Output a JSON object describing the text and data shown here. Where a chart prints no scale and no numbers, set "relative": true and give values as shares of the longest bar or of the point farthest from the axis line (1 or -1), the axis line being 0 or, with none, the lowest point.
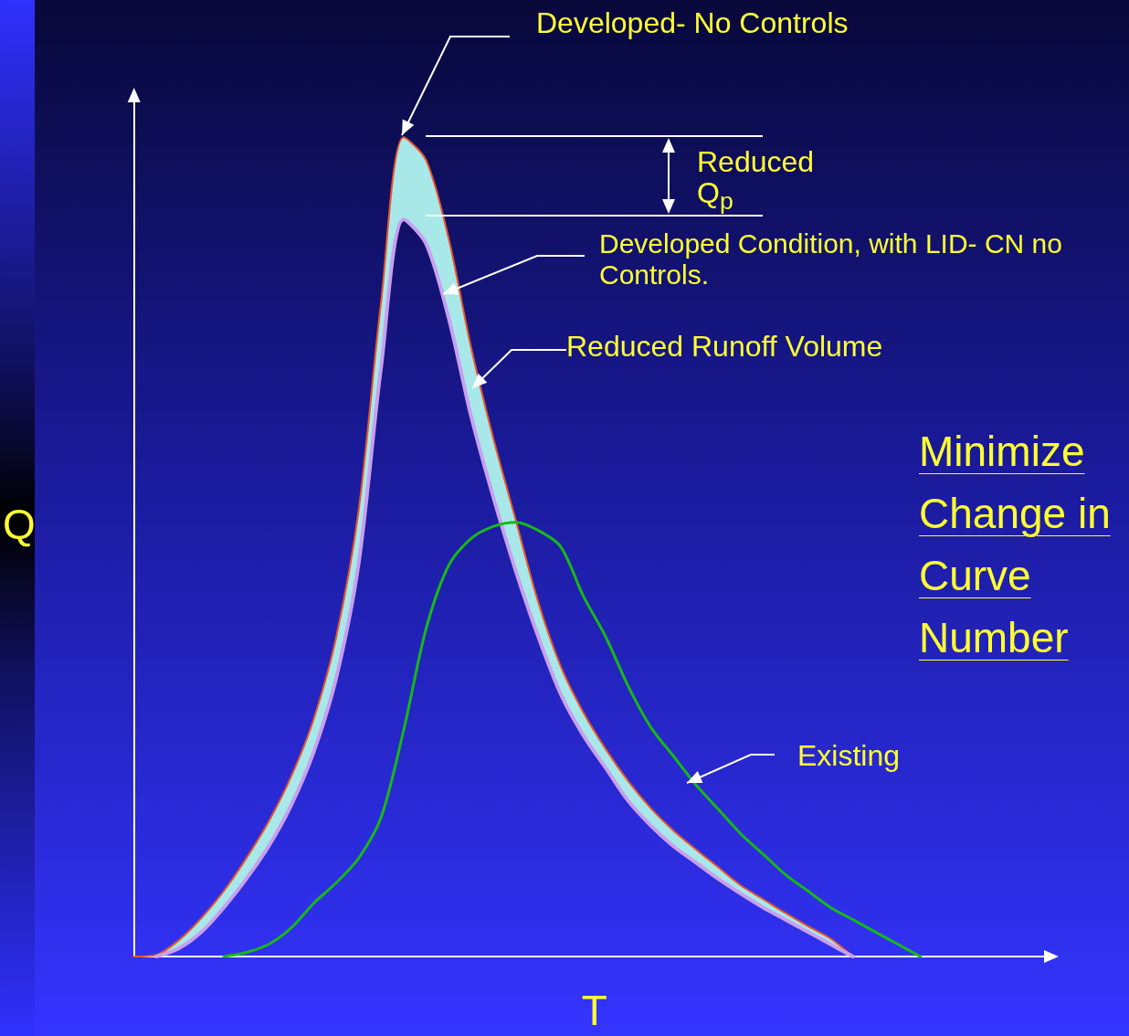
{
  "chart_data": {
    "type": "line",
    "relative": true,
    "xlabel": "T",
    "ylabel": "Q",
    "grid": false,
    "marker": "none",
    "categories": [
      null,
      null,
      null,
      null,
      null,
      null,
      null,
      null,
      null,
      null,
      null,
      null,
      null,
      null,
      null,
      null,
      null,
      null,
      null,
      null,
      null,
      null,
      null,
      null,
      null,
      null,
      null,
      null,
      null,
      null,
      null,
      null,
      null,
      null,
      null,
      null,
      null,
      null,
      null,
      null,
      null,
      null
    ],
    "series": [
      {
        "color": "#e8552a",
        "values": [
          0,
          0.002,
          0.02,
          0.047,
          0.08,
          0.12,
          0.165,
          0.22,
          0.29,
          0.39,
          0.545,
          0.8,
          1.0,
          0.972,
          0.877,
          0.744,
          0.632,
          0.532,
          0.432,
          0.354,
          0.298,
          0.253,
          0.214,
          0.181,
          0.154,
          0.131,
          0.109,
          0.087,
          0.07,
          0.053,
          0.037,
          0.022,
          0,
          null,
          null,
          null,
          null,
          null,
          null,
          null,
          null,
          null
        ],
        "upper": [
          null,
          0.002,
          0.02,
          0.047,
          0.08,
          0.12,
          0.165,
          0.22,
          0.29,
          0.39,
          0.545,
          0.8,
          1.0,
          0.972,
          0.877,
          0.744,
          0.632,
          0.532,
          0.432,
          0.354,
          0.298,
          0.253,
          0.214,
          0.181,
          0.154,
          0.131,
          0.109,
          0.087,
          0.07,
          0.053,
          0.037,
          0.022,
          0,
          null,
          null,
          null,
          null,
          null,
          null,
          null,
          null,
          null
        ],
        "lower": [
          null,
          0,
          0.01,
          0.03,
          0.06,
          0.095,
          0.135,
          0.185,
          0.25,
          0.34,
          0.48,
          0.72,
          0.9,
          0.87,
          0.78,
          0.66,
          0.56,
          0.47,
          0.39,
          0.32,
          0.27,
          0.23,
          0.19,
          0.16,
          0.135,
          0.115,
          0.095,
          0.077,
          0.06,
          0.045,
          0.03,
          0.015,
          0,
          null,
          null,
          null,
          null,
          null,
          null,
          null,
          null,
          null
        ]
      },
      {
        "color": "#c8a0f0",
        "values": [
          null,
          0,
          0.01,
          0.03,
          0.06,
          0.095,
          0.135,
          0.185,
          0.25,
          0.34,
          0.48,
          0.72,
          0.9,
          0.87,
          0.78,
          0.66,
          0.56,
          0.47,
          0.39,
          0.32,
          0.27,
          0.23,
          0.19,
          0.16,
          0.135,
          0.115,
          0.095,
          0.077,
          0.06,
          0.045,
          0.03,
          0.015,
          0,
          null,
          null,
          null,
          null,
          null,
          null,
          null,
          null,
          null
        ]
      },
      {
        "color": "#18b818",
        "values": [
          null,
          null,
          null,
          null,
          0,
          0.005,
          0.015,
          0.035,
          0.065,
          0.09,
          0.12,
          0.17,
          0.276,
          0.4,
          0.477,
          0.51,
          0.525,
          0.53,
          0.52,
          0.5,
          0.44,
          0.39,
          0.33,
          0.28,
          0.245,
          0.21,
          0.18,
          0.15,
          0.125,
          0.1,
          0.08,
          0.06,
          0.045,
          0.03,
          0.015,
          0,
          null,
          null,
          null,
          null,
          null,
          null
        ]
      }
    ],
    "annotations": [
      "Developed- No Controls",
      "Reduced Q$_{p}$",
      "Developed Condition, with LID- CN no Controls.",
      "Reduced Runoff Volume",
      "Existing",
      "Minimize Change in Curve Number"
    ]
  }
}
